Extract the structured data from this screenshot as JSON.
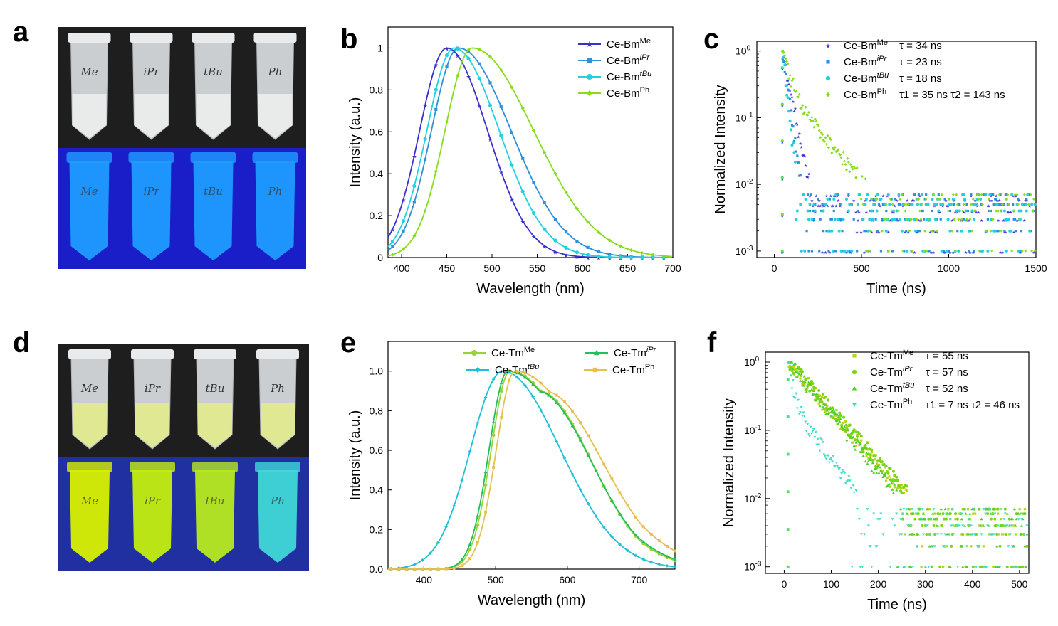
{
  "panel_labels": {
    "a": "a",
    "b": "b",
    "c": "c",
    "d": "d",
    "e": "e",
    "f": "f"
  },
  "colors": {
    "bm_me": "#3a2fd0",
    "bm_ipr": "#2f8fd8",
    "bm_tbu": "#22d0e0",
    "bm_ph": "#86dc1e",
    "tm_me": "#9ad23a",
    "tm_ipr": "#22c05a",
    "tm_tbu": "#1ec0d8",
    "tm_ph": "#e6c050"
  },
  "photos": [
    {
      "panel": "a",
      "vial_labels": [
        "Me",
        "iPr",
        "tBu",
        "Ph"
      ],
      "uv_color": "#1f9cff",
      "uv_bg": "#1a1ec8"
    },
    {
      "panel": "d",
      "vial_labels": [
        "Me",
        "iPr",
        "tBu",
        "Ph"
      ],
      "uv_colors": [
        "#d8f000",
        "#c4ee10",
        "#b8ea20",
        "#40d8d8"
      ],
      "uv_bg": "#2030a0"
    }
  ],
  "chart_data": [
    {
      "panel": "b",
      "type": "line",
      "xlabel": "Wavelength (nm)",
      "ylabel": "Intensity (a.u.)",
      "xlim": [
        385,
        700
      ],
      "ylim": [
        0,
        1.1
      ],
      "xticks": [
        "400",
        "450",
        "500",
        "550",
        "600",
        "650",
        "700"
      ],
      "yticks": [
        "0",
        "0.2",
        "0.4",
        "0.6",
        "0.8",
        "1"
      ],
      "series": [
        {
          "name": "Ce-Bm",
          "sup": "Me",
          "peak": 450,
          "width_left": 30,
          "width_right": 45
        },
        {
          "name": "Ce-Bm",
          "sup": "iPr",
          "peak": 463,
          "width_left": 30,
          "width_right": 58
        },
        {
          "name": "Ce-Bm",
          "sup": "tBu",
          "peak": 458,
          "width_left": 30,
          "width_right": 50
        },
        {
          "name": "Ce-Bm",
          "sup": "Ph",
          "peak": 478,
          "width_left": 30,
          "width_right": 68
        }
      ]
    },
    {
      "panel": "c",
      "type": "scatter",
      "yscale": "log",
      "xlabel": "Time (ns)",
      "ylabel": "Normalized Intensity",
      "xlim": [
        -100,
        1500
      ],
      "ylim": [
        0.0008,
        1.4
      ],
      "xticks": [
        "0",
        "500",
        "1000",
        "1500"
      ],
      "ytick_base": "10",
      "ytick_exps": [
        "0",
        "-1",
        "-2",
        "-3"
      ],
      "series": [
        {
          "name": "Ce-Bm",
          "sup": "Me",
          "lifetime": "τ = 34 ns",
          "tau1": 34
        },
        {
          "name": "Ce-Bm",
          "sup": "iPr",
          "lifetime": "τ = 23 ns",
          "tau1": 23
        },
        {
          "name": "Ce-Bm",
          "sup": "tBu",
          "lifetime": "τ = 18 ns",
          "tau1": 18
        },
        {
          "name": "Ce-Bm",
          "sup": "Ph",
          "lifetime": "τ1 = 35 ns   τ2 = 143 ns",
          "tau1": 35,
          "tau2": 143
        }
      ]
    },
    {
      "panel": "e",
      "type": "line",
      "xlabel": "Wavelength (nm)",
      "ylabel": "Intensity (a.u.)",
      "xlim": [
        350,
        750
      ],
      "ylim": [
        0,
        1.15
      ],
      "xticks": [
        "400",
        "500",
        "600",
        "700"
      ],
      "yticks": [
        "0.0",
        "0.2",
        "0.4",
        "0.6",
        "0.8",
        "1.0"
      ],
      "series": [
        {
          "name": "Ce-Tm",
          "sup": "Me",
          "peak": 520,
          "width_left": 26,
          "width_right": 92
        },
        {
          "name": "Ce-Tm",
          "sup": "iPr",
          "peak": 517,
          "width_left": 26,
          "width_right": 95
        },
        {
          "name": "Ce-Tm",
          "sup": "tBu",
          "peak": 510,
          "width_left": 45,
          "width_right": 80
        },
        {
          "name": "Ce-Tm",
          "sup": "Ph",
          "peak": 527,
          "width_left": 26,
          "width_right": 102
        }
      ]
    },
    {
      "panel": "f",
      "type": "scatter",
      "yscale": "log",
      "xlabel": "Time (ns)",
      "ylabel": "Normalized Intensity",
      "xlim": [
        -40,
        520
      ],
      "ylim": [
        0.0008,
        1.4
      ],
      "xticks": [
        "0",
        "100",
        "200",
        "300",
        "400",
        "500"
      ],
      "ytick_base": "10",
      "ytick_exps": [
        "0",
        "-1",
        "-2",
        "-3"
      ],
      "series": [
        {
          "name": "Ce-Tm",
          "sup": "Me",
          "lifetime": "τ = 55 ns",
          "tau1": 55
        },
        {
          "name": "Ce-Tm",
          "sup": "iPr",
          "lifetime": "τ = 57 ns",
          "tau1": 57
        },
        {
          "name": "Ce-Tm",
          "sup": "tBu",
          "lifetime": "τ = 52 ns",
          "tau1": 52
        },
        {
          "name": "Ce-Tm",
          "sup": "Ph",
          "lifetime": "τ1 = 7 ns  τ2 = 46 ns",
          "tau1": 7,
          "tau2": 46
        }
      ]
    }
  ]
}
